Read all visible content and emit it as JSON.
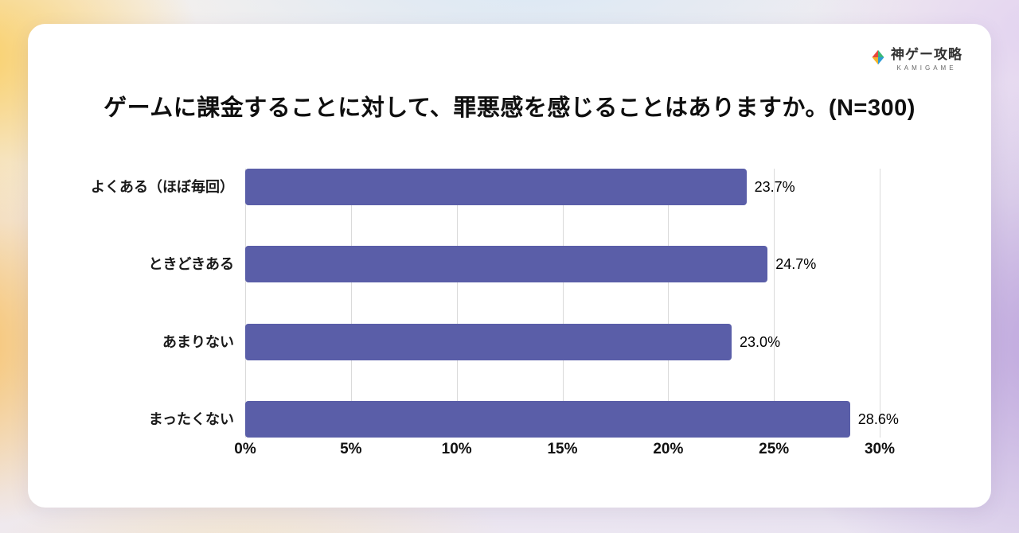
{
  "logo": {
    "name": "神ゲー攻略",
    "subtitle": "KAMIGAME"
  },
  "chart_data": {
    "type": "bar",
    "orientation": "horizontal",
    "title": "ゲームに課金することに対して、罪悪感を感じることはありますか。(N=300)",
    "categories": [
      "よくある（ほぼ毎回）",
      "ときどきある",
      "あまりない",
      "まったくない"
    ],
    "values": [
      23.7,
      24.7,
      23.0,
      28.6
    ],
    "value_labels": [
      "23.7%",
      "24.7%",
      "23.0%",
      "28.6%"
    ],
    "xlim": [
      0,
      30
    ],
    "x_ticks": [
      0,
      5,
      10,
      15,
      20,
      25,
      30
    ],
    "x_tick_labels": [
      "0%",
      "5%",
      "10%",
      "15%",
      "20%",
      "25%",
      "30%"
    ],
    "bar_color": "#5a5ea8",
    "grid": true,
    "legend": false
  }
}
